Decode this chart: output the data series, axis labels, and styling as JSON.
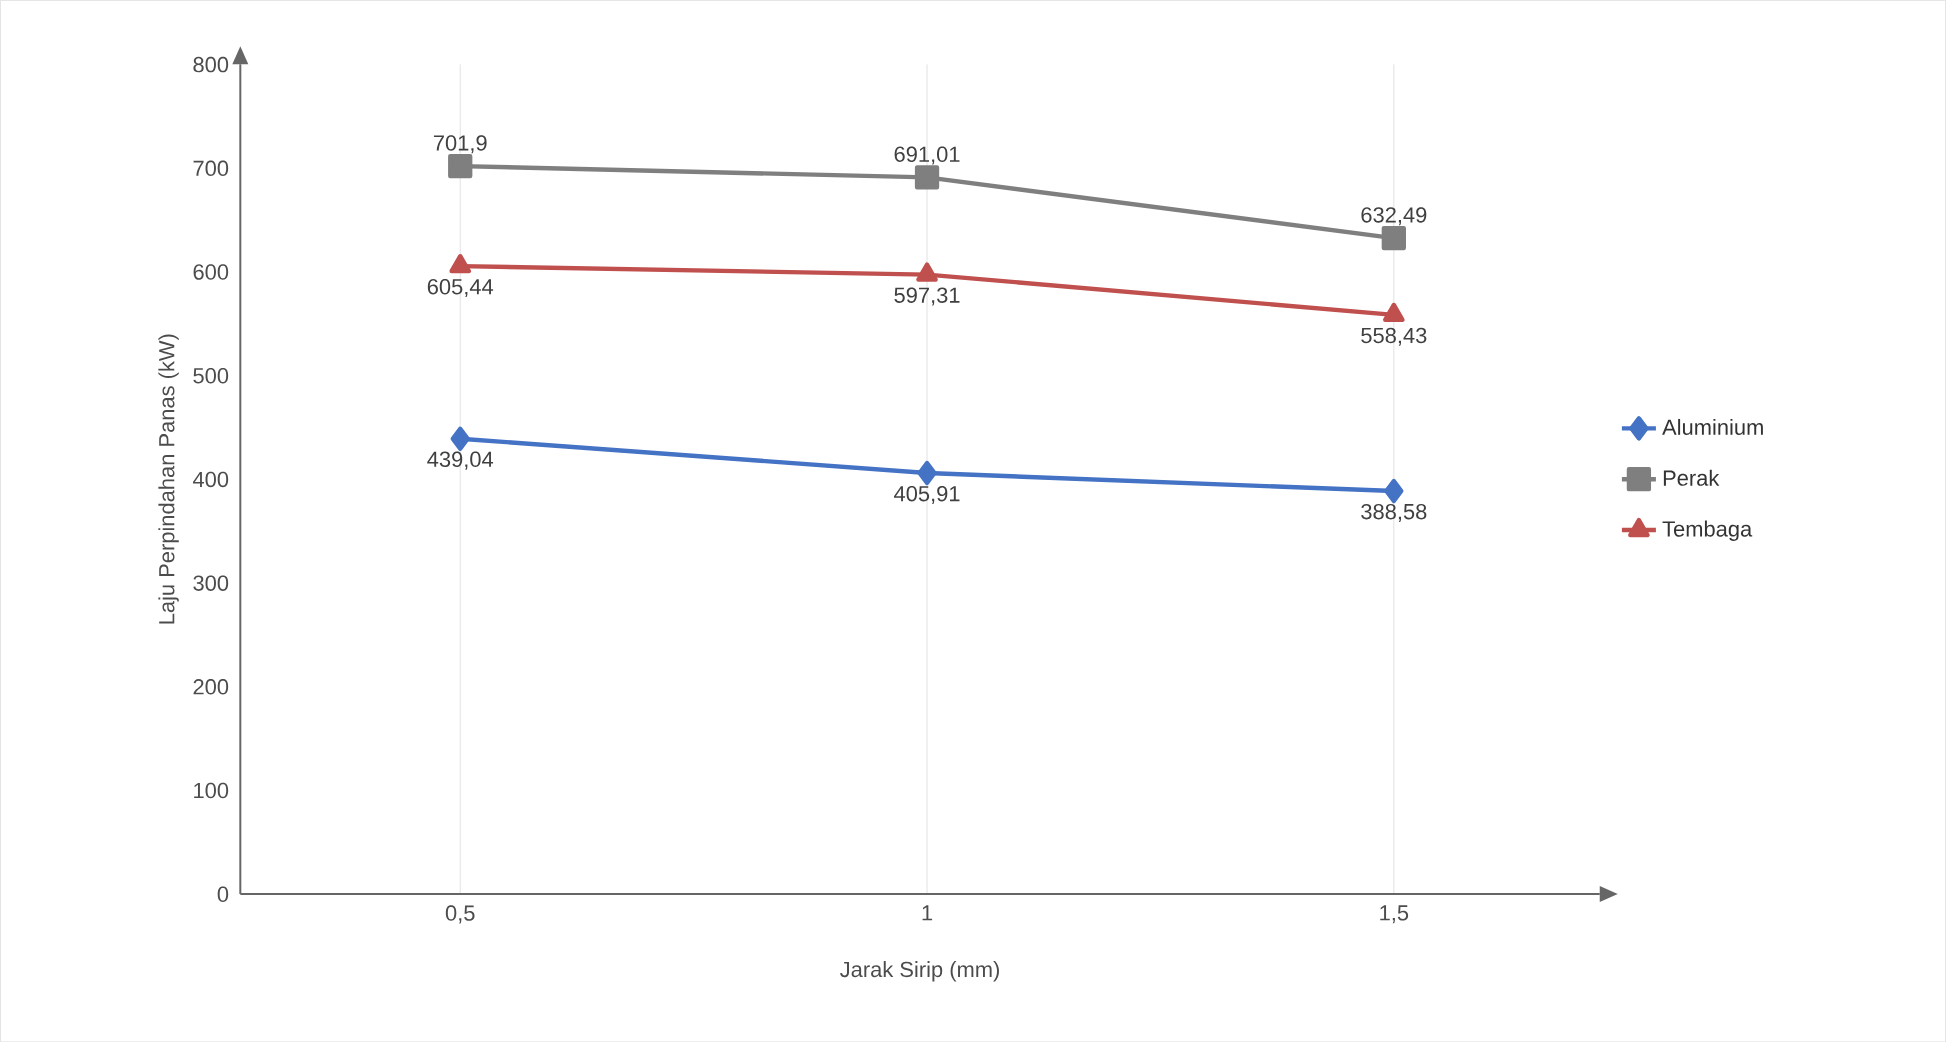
{
  "chart_data": {
    "type": "line",
    "xlabel": "Jarak Sirip (mm)",
    "ylabel": "Laju Perpindahan Panas (kW)",
    "categories": [
      "0,5",
      "1",
      "1,5"
    ],
    "series": [
      {
        "name": "Aluminium",
        "color": "#4472c4",
        "marker": "diamond",
        "values": [
          439.04,
          405.91,
          388.58
        ],
        "value_labels": [
          "439,04",
          "405,91",
          "388,58"
        ]
      },
      {
        "name": "Perak",
        "color": "#7f7f7f",
        "marker": "square",
        "values": [
          701.9,
          691.01,
          632.49
        ],
        "value_labels": [
          "701,9",
          "691,01",
          "632,49"
        ]
      },
      {
        "name": "Tembaga",
        "color": "#c0504d",
        "marker": "triangle",
        "values": [
          605.44,
          597.31,
          558.43
        ],
        "value_labels": [
          "605,44",
          "597,31",
          "558,43"
        ]
      }
    ],
    "ylim": [
      0,
      800
    ],
    "yticks": [
      0,
      100,
      200,
      300,
      400,
      500,
      600,
      700,
      800
    ],
    "grid": "x",
    "legend": "right"
  }
}
